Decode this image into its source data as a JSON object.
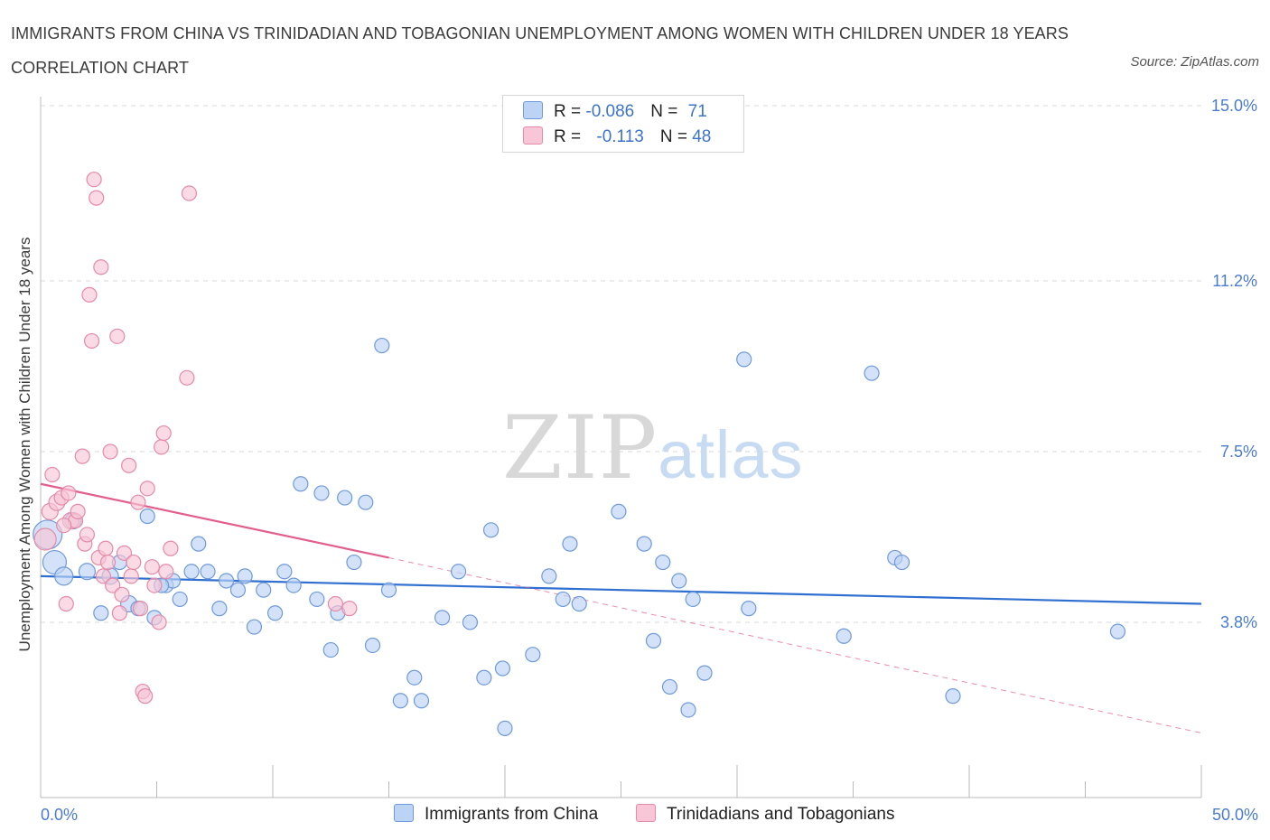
{
  "title": "IMMIGRANTS FROM CHINA VS TRINIDADIAN AND TOBAGONIAN UNEMPLOYMENT AMONG WOMEN WITH CHILDREN UNDER 18 YEARS CORRELATION CHART",
  "source": "Source: ZipAtlas.com",
  "watermark": {
    "zip": "ZIP",
    "atlas": "atlas"
  },
  "legend": {
    "rows": [
      {
        "r_label": "R = ",
        "r_value": "-0.086",
        "n_label": "N = ",
        "n_value": "71"
      },
      {
        "r_label": "R = ",
        "r_value": "-0.113",
        "n_label": "N = ",
        "n_value": "48"
      }
    ]
  },
  "bottom_legend": [
    "Immigrants from China",
    "Trinidadians and Tobagonians"
  ],
  "colors": {
    "china_fill": "#bcd3f5",
    "china_stroke": "#6f9ad9",
    "china_line": "#2f6fd0",
    "tt_fill": "#f8c6d6",
    "tt_stroke": "#e58aa8",
    "tt_line": "#e35d8d",
    "grid": "#d9d9d9",
    "axis_text": "#4a7bd0"
  },
  "chart_data": {
    "type": "scatter",
    "xlabel": "",
    "ylabel": "Unemployment Among Women with Children Under 18 years",
    "xlim": [
      0,
      50
    ],
    "ylim": [
      0,
      15
    ],
    "x_tick_labels": [
      "0.0%",
      "50.0%"
    ],
    "y_ticks": [
      3.8,
      7.5,
      11.2,
      15.0
    ],
    "y_tick_labels": [
      "3.8%",
      "7.5%",
      "11.2%",
      "15.0%"
    ],
    "grid": true,
    "legend_position": "top-center",
    "series": [
      {
        "name": "Immigrants from China",
        "r": -0.086,
        "n": 71,
        "trend": {
          "x": [
            0,
            50
          ],
          "y": [
            4.8,
            4.2
          ]
        },
        "points": [
          [
            0.3,
            5.7,
            16
          ],
          [
            0.6,
            5.1,
            13
          ],
          [
            1.0,
            4.8,
            10
          ],
          [
            1.4,
            6.0,
            9
          ],
          [
            2.0,
            4.9,
            9
          ],
          [
            2.6,
            4.0,
            8
          ],
          [
            3.0,
            4.8,
            9
          ],
          [
            3.4,
            5.1,
            8
          ],
          [
            3.8,
            4.2,
            9
          ],
          [
            4.2,
            4.1,
            8
          ],
          [
            4.6,
            6.1,
            8
          ],
          [
            4.9,
            3.9,
            8
          ],
          [
            5.4,
            4.6,
            8
          ],
          [
            5.7,
            4.7,
            8
          ],
          [
            6.0,
            4.3,
            8
          ],
          [
            6.5,
            4.9,
            8
          ],
          [
            6.8,
            5.5,
            8
          ],
          [
            7.2,
            4.9,
            8
          ],
          [
            7.7,
            4.1,
            8
          ],
          [
            8.0,
            4.7,
            8
          ],
          [
            8.5,
            4.5,
            8
          ],
          [
            8.8,
            4.8,
            8
          ],
          [
            9.2,
            3.7,
            8
          ],
          [
            9.6,
            4.5,
            8
          ],
          [
            10.1,
            4.0,
            8
          ],
          [
            10.5,
            4.9,
            8
          ],
          [
            10.9,
            4.6,
            8
          ],
          [
            11.2,
            6.8,
            8
          ],
          [
            11.9,
            4.3,
            8
          ],
          [
            12.1,
            6.6,
            8
          ],
          [
            12.5,
            3.2,
            8
          ],
          [
            12.8,
            4.0,
            8
          ],
          [
            13.1,
            6.5,
            8
          ],
          [
            13.5,
            5.1,
            8
          ],
          [
            14.0,
            6.4,
            8
          ],
          [
            14.3,
            3.3,
            8
          ],
          [
            14.7,
            9.8,
            8
          ],
          [
            15.0,
            4.5,
            8
          ],
          [
            15.5,
            2.1,
            8
          ],
          [
            16.1,
            2.6,
            8
          ],
          [
            16.4,
            2.1,
            8
          ],
          [
            17.3,
            3.9,
            8
          ],
          [
            18.0,
            4.9,
            8
          ],
          [
            18.5,
            3.8,
            8
          ],
          [
            19.1,
            2.6,
            8
          ],
          [
            19.4,
            5.8,
            8
          ],
          [
            19.9,
            2.8,
            8
          ],
          [
            20.0,
            1.5,
            8
          ],
          [
            21.2,
            3.1,
            8
          ],
          [
            21.9,
            4.8,
            8
          ],
          [
            22.5,
            4.3,
            8
          ],
          [
            22.8,
            5.5,
            8
          ],
          [
            23.2,
            4.2,
            8
          ],
          [
            24.9,
            6.2,
            8
          ],
          [
            26.0,
            5.5,
            8
          ],
          [
            26.4,
            3.4,
            8
          ],
          [
            26.8,
            5.1,
            8
          ],
          [
            27.1,
            2.4,
            8
          ],
          [
            27.5,
            4.7,
            8
          ],
          [
            27.9,
            1.9,
            8
          ],
          [
            28.1,
            4.3,
            8
          ],
          [
            28.6,
            2.7,
            8
          ],
          [
            30.3,
            9.5,
            8
          ],
          [
            30.5,
            4.1,
            8
          ],
          [
            34.6,
            3.5,
            8
          ],
          [
            35.8,
            9.2,
            8
          ],
          [
            36.8,
            5.2,
            8
          ],
          [
            37.1,
            5.1,
            8
          ],
          [
            39.3,
            2.2,
            8
          ],
          [
            46.4,
            3.6,
            8
          ],
          [
            5.2,
            4.6,
            8
          ]
        ]
      },
      {
        "name": "Trinidadians and Tobagonians",
        "r": -0.113,
        "n": 48,
        "trend": {
          "x": [
            0,
            15
          ],
          "y": [
            6.8,
            5.2
          ]
        },
        "trend_extended": {
          "x": [
            15,
            50
          ],
          "y": [
            5.2,
            1.4
          ]
        },
        "points": [
          [
            0.2,
            5.6,
            12
          ],
          [
            0.4,
            6.2,
            9
          ],
          [
            0.5,
            7.0,
            8
          ],
          [
            0.7,
            6.4,
            9
          ],
          [
            0.9,
            6.5,
            8
          ],
          [
            1.1,
            4.2,
            8
          ],
          [
            1.2,
            6.6,
            8
          ],
          [
            1.3,
            6.0,
            9
          ],
          [
            1.5,
            6.0,
            8
          ],
          [
            1.6,
            6.2,
            8
          ],
          [
            1.8,
            7.4,
            8
          ],
          [
            1.9,
            5.5,
            8
          ],
          [
            2.1,
            10.9,
            8
          ],
          [
            2.2,
            9.9,
            8
          ],
          [
            2.3,
            13.4,
            8
          ],
          [
            2.4,
            13.0,
            8
          ],
          [
            2.5,
            5.2,
            8
          ],
          [
            2.6,
            11.5,
            8
          ],
          [
            2.7,
            4.8,
            8
          ],
          [
            2.8,
            5.4,
            8
          ],
          [
            2.9,
            5.1,
            8
          ],
          [
            3.0,
            7.5,
            8
          ],
          [
            3.1,
            4.6,
            8
          ],
          [
            3.3,
            10.0,
            8
          ],
          [
            3.4,
            4.0,
            8
          ],
          [
            3.6,
            5.3,
            8
          ],
          [
            3.8,
            7.2,
            8
          ],
          [
            3.9,
            4.8,
            8
          ],
          [
            4.0,
            5.1,
            8
          ],
          [
            4.2,
            6.4,
            8
          ],
          [
            4.3,
            4.1,
            8
          ],
          [
            4.4,
            2.3,
            8
          ],
          [
            4.5,
            2.2,
            8
          ],
          [
            4.6,
            6.7,
            8
          ],
          [
            4.8,
            5.0,
            8
          ],
          [
            4.9,
            4.6,
            8
          ],
          [
            5.1,
            3.8,
            8
          ],
          [
            5.2,
            7.6,
            8
          ],
          [
            5.3,
            7.9,
            8
          ],
          [
            5.4,
            4.9,
            8
          ],
          [
            5.6,
            5.4,
            8
          ],
          [
            6.3,
            9.1,
            8
          ],
          [
            6.4,
            13.1,
            8
          ],
          [
            12.7,
            4.2,
            8
          ],
          [
            13.3,
            4.1,
            8
          ],
          [
            1.0,
            5.9,
            8
          ],
          [
            2.0,
            5.7,
            8
          ],
          [
            3.5,
            4.4,
            8
          ]
        ]
      }
    ]
  }
}
